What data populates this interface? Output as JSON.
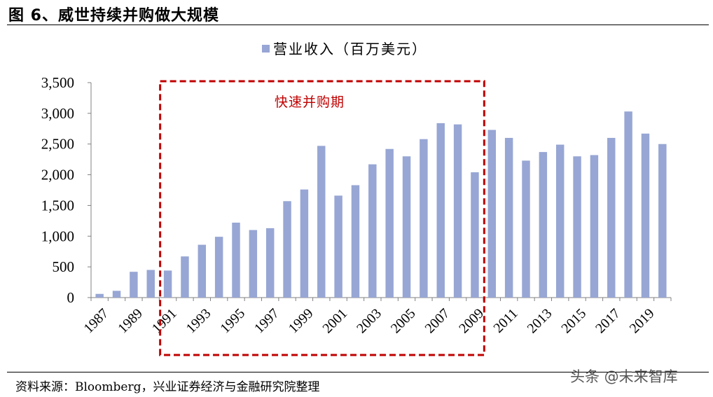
{
  "figure_title": "图 6、威世持续并购做大规模",
  "source_note": "资料来源：Bloomberg，兴业证券经济与金融研究院整理",
  "watermark": "头条 @未来智库",
  "colors": {
    "bar": "#97a6d4",
    "highlight_box": "#c00000",
    "annotation": "#c00000",
    "axis": "#808080"
  },
  "chart_data": {
    "type": "bar",
    "title": "",
    "legend": [
      "营业收入（百万美元）"
    ],
    "legend_position": "top-center",
    "xlabel": "",
    "ylabel": "",
    "ylim": [
      0,
      3500
    ],
    "yticks": [
      0,
      500,
      1000,
      1500,
      2000,
      2500,
      3000,
      3500
    ],
    "ytick_labels": [
      "0",
      "500",
      "1,000",
      "1,500",
      "2,000",
      "2,500",
      "3,000",
      "3,500"
    ],
    "x_tick_labels": [
      "1987",
      "1989",
      "1991",
      "1993",
      "1995",
      "1997",
      "1999",
      "2001",
      "2003",
      "2005",
      "2007",
      "2009",
      "2011",
      "2013",
      "2015",
      "2017",
      "2019"
    ],
    "series": [
      {
        "name": "营业收入（百万美元）",
        "categories": [
          "1987",
          "1988",
          "1989",
          "1990",
          "1991",
          "1992",
          "1993",
          "1994",
          "1995",
          "1996",
          "1997",
          "1998",
          "1999",
          "2000",
          "2001",
          "2002",
          "2003",
          "2004",
          "2005",
          "2006",
          "2007",
          "2008",
          "2009",
          "2010",
          "2011",
          "2012",
          "2013",
          "2014",
          "2015",
          "2016",
          "2017",
          "2018",
          "2019",
          "2020"
        ],
        "values": [
          60,
          110,
          420,
          450,
          440,
          670,
          860,
          990,
          1220,
          1100,
          1130,
          1570,
          1760,
          2470,
          1660,
          1830,
          2170,
          2420,
          2300,
          2580,
          2840,
          2820,
          2040,
          2730,
          2600,
          2230,
          2370,
          2490,
          2300,
          2320,
          2600,
          3030,
          2670,
          2500
        ]
      }
    ],
    "annotation": {
      "text": "快速并购期",
      "span": [
        "1991",
        "2009"
      ]
    }
  }
}
